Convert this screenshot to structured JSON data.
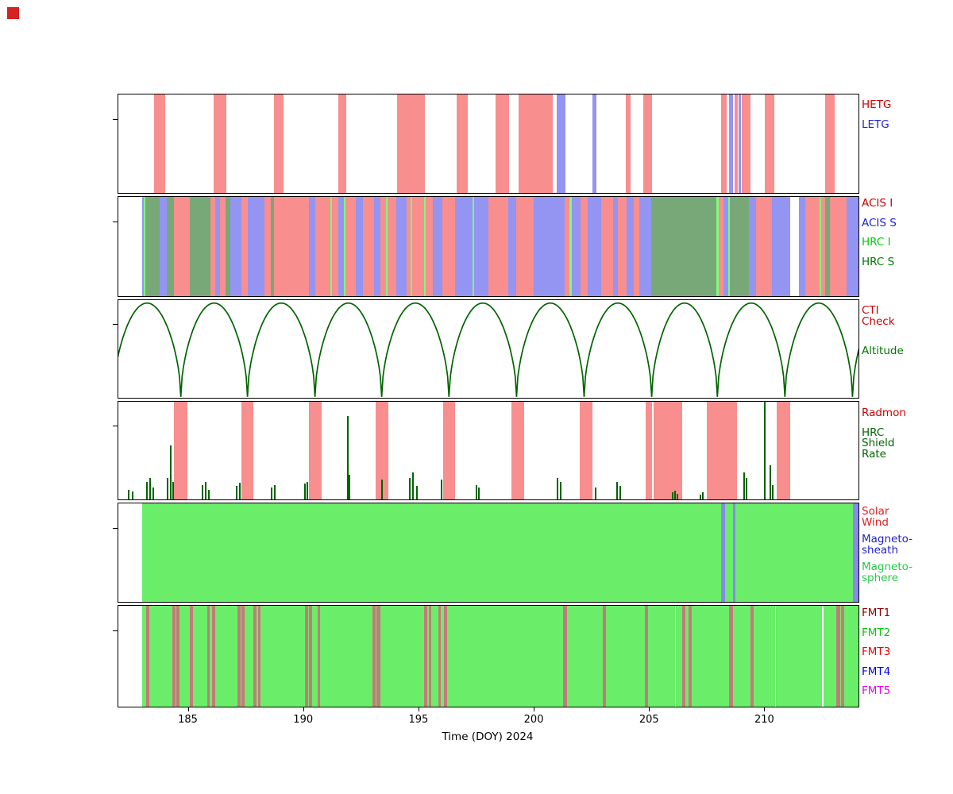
{
  "figure": {
    "marker_color": "#d62222"
  },
  "chart_data": {
    "type": "area",
    "subtype": "mission-timeline-bands",
    "title": "",
    "xlabel": "Time (DOY) 2024",
    "x_range": [
      181.95,
      214.05
    ],
    "x_ticks": [
      185,
      190,
      195,
      200,
      205,
      210
    ],
    "grid": false,
    "legend_position": "right",
    "panels": [
      {
        "id": "gratings",
        "legend": [
          {
            "label": "HETG",
            "color": "#cc0000"
          },
          {
            "label": "LETG",
            "color": "#2222cc"
          }
        ],
        "series_colors": {
          "HETG": "#f98e8e",
          "LETG": "#9494f2"
        },
        "bands": [
          {
            "s": "HETG",
            "t0": 183.5,
            "t1": 183.98
          },
          {
            "s": "HETG",
            "t0": 186.08,
            "t1": 186.62
          },
          {
            "s": "HETG",
            "t0": 188.7,
            "t1": 189.1
          },
          {
            "s": "HETG",
            "t0": 191.48,
            "t1": 191.82
          },
          {
            "s": "HETG",
            "t0": 194.05,
            "t1": 195.25
          },
          {
            "s": "HETG",
            "t0": 196.62,
            "t1": 197.12
          },
          {
            "s": "HETG",
            "t0": 198.3,
            "t1": 198.9
          },
          {
            "s": "HETG",
            "t0": 199.3,
            "t1": 200.8
          },
          {
            "s": "LETG",
            "t0": 200.95,
            "t1": 201.35
          },
          {
            "s": "LETG",
            "t0": 202.5,
            "t1": 202.7
          },
          {
            "s": "HETG",
            "t0": 203.95,
            "t1": 204.15
          },
          {
            "s": "HETG",
            "t0": 204.7,
            "t1": 205.1
          },
          {
            "s": "HETG",
            "t0": 208.08,
            "t1": 208.35
          },
          {
            "s": "LETG",
            "t0": 208.45,
            "t1": 208.62
          },
          {
            "s": "HETG",
            "t0": 208.68,
            "t1": 208.8
          },
          {
            "s": "LETG",
            "t0": 208.85,
            "t1": 208.95
          },
          {
            "s": "HETG",
            "t0": 209.0,
            "t1": 209.38
          },
          {
            "s": "HETG",
            "t0": 209.98,
            "t1": 210.4
          },
          {
            "s": "HETG",
            "t0": 212.62,
            "t1": 213.02
          }
        ]
      },
      {
        "id": "instruments",
        "legend": [
          {
            "label": "ACIS I",
            "color": "#cc0000"
          },
          {
            "label": "ACIS S",
            "color": "#2222cc"
          },
          {
            "label": "HRC I",
            "color": "#00cc00"
          },
          {
            "label": "HRC S",
            "color": "#007700"
          }
        ],
        "series_colors": {
          "ACIS_I": "#f98e8e",
          "ACIS_S": "#9494f2",
          "HRC_I": "#7dfc7d",
          "HRC_S": "#78a878"
        },
        "bands": [
          {
            "s": "ACIS_S",
            "t0": 182.98,
            "t1": 183.06
          },
          {
            "s": "HRC_I",
            "t0": 183.06,
            "t1": 183.12
          },
          {
            "s": "HRC_S",
            "t0": 183.12,
            "t1": 183.75
          },
          {
            "s": "ACIS_S",
            "t0": 183.75,
            "t1": 184.05
          },
          {
            "s": "HRC_S",
            "t0": 184.05,
            "t1": 184.35
          },
          {
            "s": "ACIS_I",
            "t0": 184.35,
            "t1": 185.05
          },
          {
            "s": "HRC_S",
            "t0": 185.05,
            "t1": 185.95
          },
          {
            "s": "ACIS_I",
            "t0": 185.95,
            "t1": 186.15
          },
          {
            "s": "ACIS_S",
            "t0": 186.15,
            "t1": 186.35
          },
          {
            "s": "ACIS_I",
            "t0": 186.35,
            "t1": 186.6
          },
          {
            "s": "HRC_S",
            "t0": 186.6,
            "t1": 186.8
          },
          {
            "s": "ACIS_S",
            "t0": 186.8,
            "t1": 187.3
          },
          {
            "s": "ACIS_I",
            "t0": 187.3,
            "t1": 187.55
          },
          {
            "s": "ACIS_S",
            "t0": 187.55,
            "t1": 188.3
          },
          {
            "s": "ACIS_I",
            "t0": 188.3,
            "t1": 188.55
          },
          {
            "s": "HRC_S",
            "t0": 188.55,
            "t1": 188.7
          },
          {
            "s": "ACIS_I",
            "t0": 188.7,
            "t1": 190.2
          },
          {
            "s": "ACIS_S",
            "t0": 190.2,
            "t1": 190.5
          },
          {
            "s": "ACIS_I",
            "t0": 190.5,
            "t1": 191.15
          },
          {
            "s": "HRC_I",
            "t0": 191.15,
            "t1": 191.22
          },
          {
            "s": "ACIS_I",
            "t0": 191.22,
            "t1": 191.5
          },
          {
            "s": "ACIS_S",
            "t0": 191.5,
            "t1": 191.72
          },
          {
            "s": "HRC_I",
            "t0": 191.72,
            "t1": 191.8
          },
          {
            "s": "ACIS_I",
            "t0": 191.8,
            "t1": 192.25
          },
          {
            "s": "ACIS_S",
            "t0": 192.25,
            "t1": 192.55
          },
          {
            "s": "ACIS_I",
            "t0": 192.55,
            "t1": 193.05
          },
          {
            "s": "ACIS_S",
            "t0": 193.05,
            "t1": 193.3
          },
          {
            "s": "ACIS_I",
            "t0": 193.3,
            "t1": 193.55
          },
          {
            "s": "HRC_I",
            "t0": 193.55,
            "t1": 193.62
          },
          {
            "s": "ACIS_I",
            "t0": 193.62,
            "t1": 194.0
          },
          {
            "s": "ACIS_S",
            "t0": 194.0,
            "t1": 194.45
          },
          {
            "s": "ACIS_I",
            "t0": 194.45,
            "t1": 194.62
          },
          {
            "s": "HRC_I",
            "t0": 194.62,
            "t1": 194.7
          },
          {
            "s": "ACIS_I",
            "t0": 194.7,
            "t1": 195.2
          },
          {
            "s": "HRC_I",
            "t0": 195.2,
            "t1": 195.28
          },
          {
            "s": "ACIS_I",
            "t0": 195.28,
            "t1": 195.6
          },
          {
            "s": "ACIS_S",
            "t0": 195.6,
            "t1": 196.0
          },
          {
            "s": "ACIS_I",
            "t0": 196.0,
            "t1": 196.55
          },
          {
            "s": "ACIS_S",
            "t0": 196.55,
            "t1": 197.3
          },
          {
            "s": "HRC_I",
            "t0": 197.3,
            "t1": 197.38
          },
          {
            "s": "ACIS_S",
            "t0": 197.38,
            "t1": 198.0
          },
          {
            "s": "ACIS_I",
            "t0": 198.0,
            "t1": 198.85
          },
          {
            "s": "ACIS_S",
            "t0": 198.85,
            "t1": 199.2
          },
          {
            "s": "ACIS_I",
            "t0": 199.2,
            "t1": 199.95
          },
          {
            "s": "ACIS_S",
            "t0": 199.95,
            "t1": 201.3
          },
          {
            "s": "ACIS_I",
            "t0": 201.3,
            "t1": 201.52
          },
          {
            "s": "HRC_I",
            "t0": 201.52,
            "t1": 201.6
          },
          {
            "s": "ACIS_S",
            "t0": 201.6,
            "t1": 202.0
          },
          {
            "s": "ACIS_I",
            "t0": 202.0,
            "t1": 202.3
          },
          {
            "s": "ACIS_S",
            "t0": 202.3,
            "t1": 202.9
          },
          {
            "s": "ACIS_I",
            "t0": 202.9,
            "t1": 203.4
          },
          {
            "s": "ACIS_S",
            "t0": 203.4,
            "t1": 203.62
          },
          {
            "s": "ACIS_I",
            "t0": 203.62,
            "t1": 204.0
          },
          {
            "s": "ACIS_S",
            "t0": 204.0,
            "t1": 204.3
          },
          {
            "s": "ACIS_I",
            "t0": 204.3,
            "t1": 204.55
          },
          {
            "s": "ACIS_S",
            "t0": 204.55,
            "t1": 205.05
          },
          {
            "s": "HRC_S",
            "t0": 205.05,
            "t1": 207.9
          },
          {
            "s": "HRC_I",
            "t0": 207.9,
            "t1": 207.98
          },
          {
            "s": "ACIS_I",
            "t0": 207.98,
            "t1": 208.2
          },
          {
            "s": "ACIS_S",
            "t0": 208.2,
            "t1": 208.4
          },
          {
            "s": "HRC_I",
            "t0": 208.4,
            "t1": 208.48
          },
          {
            "s": "HRC_S",
            "t0": 208.48,
            "t1": 209.3
          },
          {
            "s": "ACIS_S",
            "t0": 209.3,
            "t1": 209.6
          },
          {
            "s": "ACIS_I",
            "t0": 209.6,
            "t1": 210.3
          },
          {
            "s": "ACIS_S",
            "t0": 210.3,
            "t1": 211.1
          },
          {
            "s": "ACIS_S",
            "t0": 211.45,
            "t1": 211.75
          },
          {
            "s": "ACIS_I",
            "t0": 211.75,
            "t1": 212.35
          },
          {
            "s": "HRC_I",
            "t0": 212.35,
            "t1": 212.42
          },
          {
            "s": "ACIS_I",
            "t0": 212.42,
            "t1": 212.62
          },
          {
            "s": "HRC_S",
            "t0": 212.62,
            "t1": 212.8
          },
          {
            "s": "ACIS_I",
            "t0": 212.8,
            "t1": 213.55
          },
          {
            "s": "ACIS_S",
            "t0": 213.55,
            "t1": 214.05
          }
        ]
      },
      {
        "id": "orbit",
        "legend": [
          {
            "label": "CTI\nCheck",
            "color": "#cc0000"
          },
          {
            "label": "Altitude",
            "color": "#007700"
          }
        ],
        "curve_color": "#006400",
        "perigee_days": [
          181.73,
          184.66,
          187.55,
          190.48,
          193.37,
          196.29,
          199.22,
          202.15,
          205.08,
          207.93,
          210.86,
          213.79,
          216.72
        ]
      },
      {
        "id": "radmon",
        "legend": [
          {
            "label": "Radmon",
            "color": "#cc0000"
          },
          {
            "label": "HRC\nShield\nRate",
            "color": "#006400"
          }
        ],
        "series_colors": {
          "RADMON": "#f98e8e"
        },
        "spike_color": "#006400",
        "bands": [
          {
            "s": "RADMON",
            "t0": 184.35,
            "t1": 184.95
          },
          {
            "s": "RADMON",
            "t0": 187.3,
            "t1": 187.8
          },
          {
            "s": "RADMON",
            "t0": 190.2,
            "t1": 190.75
          },
          {
            "s": "RADMON",
            "t0": 193.1,
            "t1": 193.65
          },
          {
            "s": "RADMON",
            "t0": 196.02,
            "t1": 196.55
          },
          {
            "s": "RADMON",
            "t0": 199.0,
            "t1": 199.55
          },
          {
            "s": "RADMON",
            "t0": 201.95,
            "t1": 202.5
          },
          {
            "s": "RADMON",
            "t0": 204.82,
            "t1": 205.08
          },
          {
            "s": "RADMON",
            "t0": 205.18,
            "t1": 206.42
          },
          {
            "s": "RADMON",
            "t0": 207.48,
            "t1": 208.78
          },
          {
            "s": "RADMON",
            "t0": 210.5,
            "t1": 211.08
          }
        ],
        "spikes": [
          [
            182.35,
            0.1
          ],
          [
            182.55,
            0.08
          ],
          [
            183.15,
            0.18
          ],
          [
            183.3,
            0.22
          ],
          [
            183.42,
            0.12
          ],
          [
            184.05,
            0.22
          ],
          [
            184.18,
            0.55
          ],
          [
            184.28,
            0.18
          ],
          [
            185.55,
            0.15
          ],
          [
            185.7,
            0.18
          ],
          [
            185.85,
            0.1
          ],
          [
            187.05,
            0.14
          ],
          [
            187.18,
            0.17
          ],
          [
            188.55,
            0.12
          ],
          [
            188.7,
            0.15
          ],
          [
            190.02,
            0.16
          ],
          [
            190.12,
            0.18
          ],
          [
            191.88,
            0.85
          ],
          [
            191.95,
            0.25
          ],
          [
            193.35,
            0.2
          ],
          [
            194.55,
            0.22
          ],
          [
            194.7,
            0.28
          ],
          [
            194.85,
            0.14
          ],
          [
            195.95,
            0.2
          ],
          [
            197.45,
            0.15
          ],
          [
            197.55,
            0.12
          ],
          [
            200.95,
            0.22
          ],
          [
            201.1,
            0.18
          ],
          [
            202.6,
            0.12
          ],
          [
            203.55,
            0.18
          ],
          [
            203.7,
            0.14
          ],
          [
            205.95,
            0.07
          ],
          [
            206.05,
            0.09
          ],
          [
            206.15,
            0.06
          ],
          [
            207.15,
            0.05
          ],
          [
            207.28,
            0.07
          ],
          [
            209.05,
            0.28
          ],
          [
            209.15,
            0.22
          ],
          [
            209.95,
            1.0
          ],
          [
            210.18,
            0.35
          ],
          [
            210.28,
            0.15
          ]
        ]
      },
      {
        "id": "solarwind",
        "legend": [
          {
            "label": "Solar\nWind",
            "color": "#dd2222"
          },
          {
            "label": "Magneto-\nsheath",
            "color": "#2222cc"
          },
          {
            "label": "Magneto-\nsphere",
            "color": "#22cc44"
          }
        ],
        "series_colors": {
          "MSPHERE": "#6aee6a",
          "MSHEATH": "#8888ee"
        },
        "bands": [
          {
            "s": "MSPHERE",
            "t0": 183.0,
            "t1": 214.05
          },
          {
            "s": "MSHEATH",
            "t0": 208.08,
            "t1": 208.28
          },
          {
            "s": "MSHEATH",
            "t0": 208.6,
            "t1": 208.72
          },
          {
            "s": "MSHEATH",
            "t0": 213.8,
            "t1": 214.05
          }
        ]
      },
      {
        "id": "telemetry",
        "legend": [
          {
            "label": "FMT1",
            "color": "#8b0000"
          },
          {
            "label": "FMT2",
            "color": "#00cc00"
          },
          {
            "label": "FMT3",
            "color": "#ee0000"
          },
          {
            "label": "FMT4",
            "color": "#0000ee"
          },
          {
            "label": "FMT5",
            "color": "#ee00ee"
          }
        ],
        "series_colors": {
          "FMT2": "#6aee6a",
          "FMT1": "#c47a7a",
          "GAP": "#ffffff"
        },
        "bands": [
          {
            "s": "FMT2",
            "t0": 183.0,
            "t1": 214.05
          },
          {
            "s": "FMT1",
            "t0": 183.15,
            "t1": 183.28
          },
          {
            "s": "FMT1",
            "t0": 184.3,
            "t1": 184.42
          },
          {
            "s": "FMT1",
            "t0": 184.48,
            "t1": 184.6
          },
          {
            "s": "FMT1",
            "t0": 185.05,
            "t1": 185.18
          },
          {
            "s": "FMT1",
            "t0": 185.8,
            "t1": 185.92
          },
          {
            "s": "FMT1",
            "t0": 186.02,
            "t1": 186.15
          },
          {
            "s": "FMT1",
            "t0": 187.12,
            "t1": 187.25
          },
          {
            "s": "FMT1",
            "t0": 187.3,
            "t1": 187.42
          },
          {
            "s": "FMT1",
            "t0": 187.82,
            "t1": 187.95
          },
          {
            "s": "FMT1",
            "t0": 188.0,
            "t1": 188.12
          },
          {
            "s": "FMT1",
            "t0": 190.05,
            "t1": 190.18
          },
          {
            "s": "FMT1",
            "t0": 190.22,
            "t1": 190.35
          },
          {
            "s": "FMT1",
            "t0": 190.58,
            "t1": 190.7
          },
          {
            "s": "FMT1",
            "t0": 192.98,
            "t1": 193.12
          },
          {
            "s": "FMT1",
            "t0": 193.16,
            "t1": 193.3
          },
          {
            "s": "FMT1",
            "t0": 195.22,
            "t1": 195.35
          },
          {
            "s": "FMT1",
            "t0": 195.4,
            "t1": 195.52
          },
          {
            "s": "FMT1",
            "t0": 195.82,
            "t1": 195.95
          },
          {
            "s": "FMT1",
            "t0": 196.08,
            "t1": 196.2
          },
          {
            "s": "FMT1",
            "t0": 201.25,
            "t1": 201.4
          },
          {
            "s": "FMT1",
            "t0": 202.95,
            "t1": 203.1
          },
          {
            "s": "FMT1",
            "t0": 204.78,
            "t1": 204.92
          },
          {
            "s": "FMT1",
            "t0": 206.4,
            "t1": 206.55
          },
          {
            "s": "FMT1",
            "t0": 206.68,
            "t1": 206.82
          },
          {
            "s": "FMT1",
            "t0": 208.45,
            "t1": 208.6
          },
          {
            "s": "FMT1",
            "t0": 209.35,
            "t1": 209.5
          },
          {
            "s": "FMT1",
            "t0": 213.1,
            "t1": 213.25
          },
          {
            "s": "FMT1",
            "t0": 213.3,
            "t1": 213.42
          },
          {
            "s": "GAP",
            "t0": 206.1,
            "t1": 206.14
          },
          {
            "s": "GAP",
            "t0": 210.42,
            "t1": 210.46
          },
          {
            "s": "GAP",
            "t0": 212.48,
            "t1": 212.52
          }
        ]
      }
    ]
  }
}
